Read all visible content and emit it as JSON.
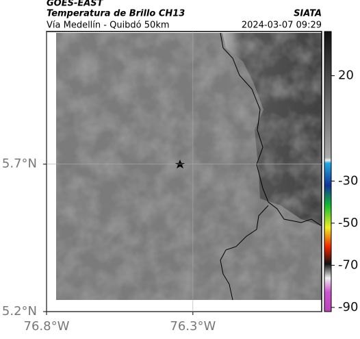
{
  "header": {
    "source": "GOES-EAST",
    "title": "Temperatura de Brillo CH13",
    "agency": "SIATA",
    "subtitle": "Vía Medellín - Quibdó 50km",
    "timestamp": "2024-03-07 09:29"
  },
  "map": {
    "xlim": [
      -76.8,
      -75.86
    ],
    "ylim": [
      5.2,
      6.15
    ],
    "xticks": [
      {
        "value": -76.8,
        "label": "76.8°W"
      },
      {
        "value": -76.3,
        "label": "76.3°W"
      }
    ],
    "yticks": [
      {
        "value": 5.2,
        "label": "5.2°N"
      },
      {
        "value": 5.7,
        "label": "5.7°N"
      }
    ]
  },
  "colorbar": {
    "clim": [
      -92,
      41
    ],
    "ticks": [
      20,
      -30,
      -50,
      -70,
      -90
    ]
  }
}
